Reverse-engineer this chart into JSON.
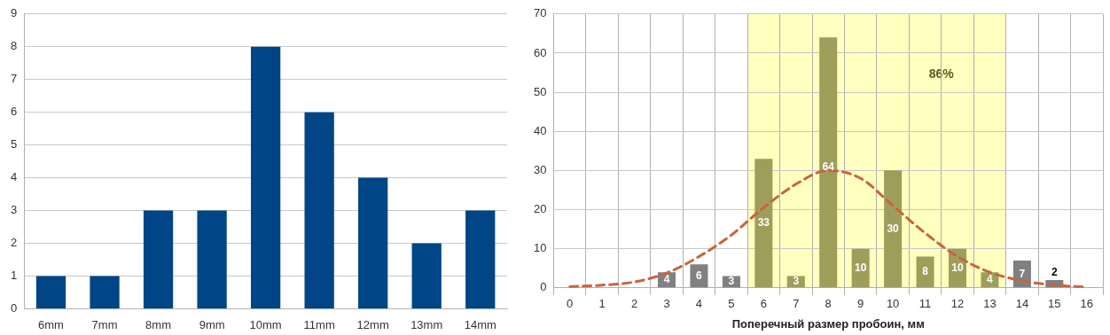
{
  "chart_data": [
    {
      "type": "bar",
      "categories": [
        "6mm",
        "7mm",
        "8mm",
        "9mm",
        "10mm",
        "11mm",
        "12mm",
        "13mm",
        "14mm"
      ],
      "values": [
        1,
        1,
        3,
        3,
        8,
        6,
        4,
        2,
        3
      ],
      "color": "#004586",
      "ylim": [
        0,
        9
      ],
      "yticks": [
        0,
        1,
        2,
        3,
        4,
        5,
        6,
        7,
        8,
        9
      ],
      "grid": "y",
      "legend": false
    },
    {
      "type": "bar",
      "xlabel": "Поперечный размер пробоин, мм",
      "categories": [
        "0",
        "1",
        "2",
        "3",
        "4",
        "5",
        "6",
        "7",
        "8",
        "9",
        "10",
        "11",
        "12",
        "13",
        "14",
        "15",
        "16"
      ],
      "series": [
        {
          "type": "bar",
          "colors": [
            "#808080",
            "#808080",
            "#808080",
            "#808080",
            "#808080",
            "#808080",
            "#9e9e5a",
            "#9e9e5a",
            "#9e9e5a",
            "#9e9e5a",
            "#9e9e5a",
            "#9e9e5a",
            "#9e9e5a",
            "#9e9e5a",
            "#808080",
            "#808080",
            "#808080"
          ],
          "values": [
            null,
            null,
            null,
            4,
            6,
            3,
            33,
            3,
            64,
            10,
            30,
            8,
            10,
            4,
            7,
            2,
            null
          ],
          "value_labels": [
            null,
            null,
            null,
            "4",
            "6",
            "3",
            "33",
            "3",
            "64",
            "10",
            "30",
            "8",
            "10",
            "4",
            "7",
            "2",
            null
          ]
        },
        {
          "type": "line",
          "color": "#c8643c",
          "line_style": "dashed",
          "marker": "none",
          "values": [
            0.3,
            0.7,
            1.5,
            3.8,
            8,
            13.5,
            20.5,
            26.5,
            30,
            28,
            21,
            14,
            8,
            4,
            1.8,
            0.7,
            0.2
          ]
        }
      ],
      "ylim": [
        0,
        70
      ],
      "yticks": [
        0,
        10,
        20,
        30,
        40,
        50,
        60,
        70
      ],
      "grid": true,
      "legend": false,
      "bands": [
        {
          "axis": "x",
          "from": "6",
          "to": "13",
          "label": "86%",
          "color": "#ffffc0"
        }
      ]
    }
  ]
}
